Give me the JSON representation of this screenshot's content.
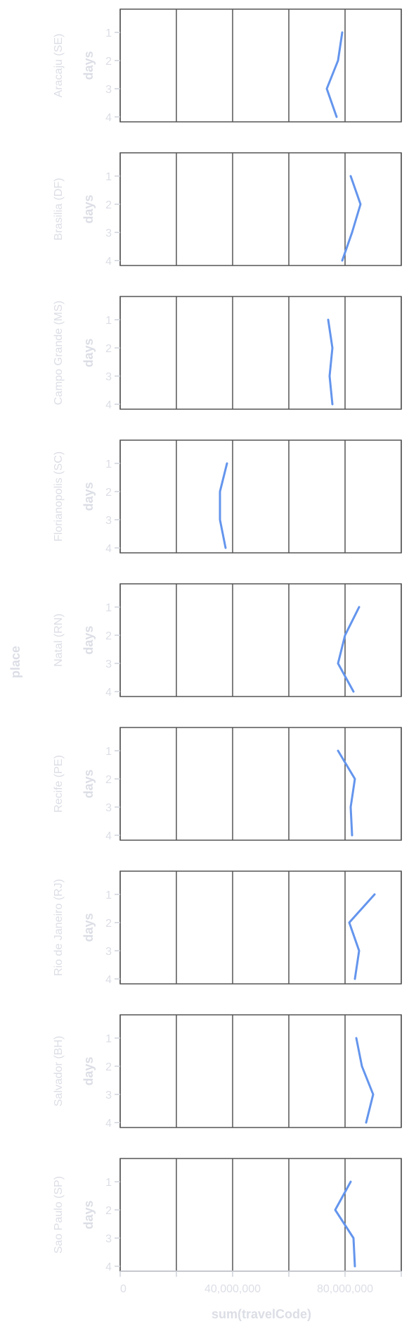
{
  "chart_data": {
    "type": "line",
    "facet_field": "place",
    "xlabel": "sum(travelCode)",
    "ylabel": "days",
    "xlim": [
      0,
      100000000
    ],
    "x_ticks": [
      0,
      20000000,
      40000000,
      60000000,
      80000000,
      100000000
    ],
    "x_tick_labels": [
      "0",
      "",
      "40,000,000",
      "",
      "80,000,000",
      ""
    ],
    "y_categories": [
      "1",
      "2",
      "3",
      "4"
    ],
    "line_color": "#6495ED",
    "grid": "vertical",
    "facets": [
      {
        "name": "Aracaju (SE)",
        "values": [
          79000000,
          77500000,
          73500000,
          77000000
        ]
      },
      {
        "name": "Brasilia (DF)",
        "values": [
          82000000,
          85500000,
          82500000,
          79000000
        ]
      },
      {
        "name": "Campo Grande (MS)",
        "values": [
          74000000,
          75500000,
          74500000,
          75500000
        ]
      },
      {
        "name": "Florianopolis (SC)",
        "values": [
          38000000,
          35500000,
          35500000,
          37500000
        ]
      },
      {
        "name": "Natal (RN)",
        "values": [
          85000000,
          80000000,
          77500000,
          83000000
        ]
      },
      {
        "name": "Recife (PE)",
        "values": [
          77500000,
          83500000,
          82000000,
          82500000
        ]
      },
      {
        "name": "Rio de Janeiro (RJ)",
        "values": [
          90500000,
          81500000,
          85000000,
          83500000
        ]
      },
      {
        "name": "Salvador (BH)",
        "values": [
          84000000,
          86000000,
          90000000,
          87500000
        ]
      },
      {
        "name": "Sao Paulo (SP)",
        "values": [
          82000000,
          76500000,
          83000000,
          83500000
        ]
      }
    ]
  }
}
